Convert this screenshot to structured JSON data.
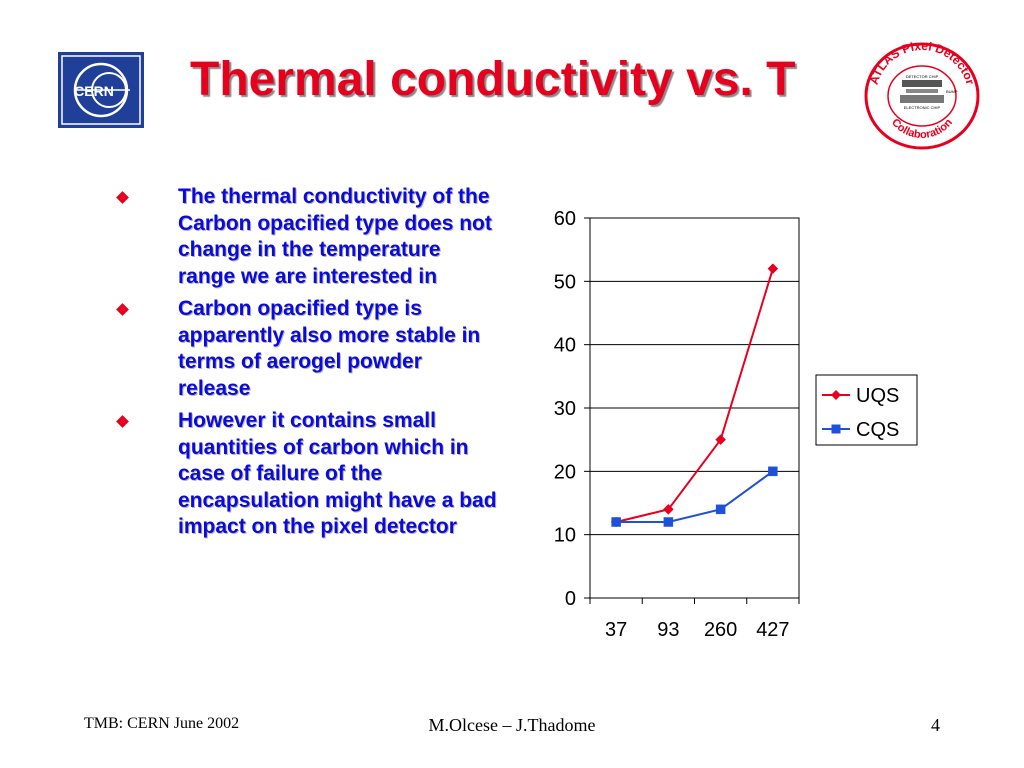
{
  "slide": {
    "title": "Thermal conductivity vs. T",
    "bullets": [
      "The thermal conductivity of the Carbon opacified type does not change in the temperature range we are interested in",
      "Carbon opacified type is apparently also more stable in terms of aerogel powder release",
      "However it contains small quantities of carbon which in case of failure of the encapsulation might have a bad impact on the pixel detector"
    ],
    "colors": {
      "title": "#e6001e",
      "bullets": "#0a0adc",
      "uqs": "#e6001e",
      "cqs": "#1e50dc"
    }
  },
  "logos": {
    "cern": {
      "icon": "cern-logo",
      "text": "CERN"
    },
    "atlas": {
      "icon": "atlas-pixel-collaboration-logo",
      "ring_top": "ATLAS Pixel Detector",
      "ring_bottom": "Collaboration",
      "inner_labels": [
        "DETECTOR CHIP",
        "BUMP",
        "ELECTRONIC CHIP"
      ]
    }
  },
  "footer": {
    "left": "TMB: CERN June 2002",
    "center": "M.Olcese – J.Thadome",
    "page_number": "4"
  },
  "chart_data": {
    "type": "line",
    "categories": [
      "37",
      "93",
      "260",
      "427"
    ],
    "series": [
      {
        "name": "UQS",
        "values": [
          12,
          14,
          25,
          52
        ],
        "color": "#e6001e",
        "marker": "diamond"
      },
      {
        "name": "CQS",
        "values": [
          12,
          12,
          14,
          20
        ],
        "color": "#1e50dc",
        "marker": "square"
      }
    ],
    "y_ticks": [
      0,
      10,
      20,
      30,
      40,
      50,
      60
    ],
    "ylim": [
      0,
      60
    ],
    "grid": "horizontal",
    "legend": "right"
  }
}
